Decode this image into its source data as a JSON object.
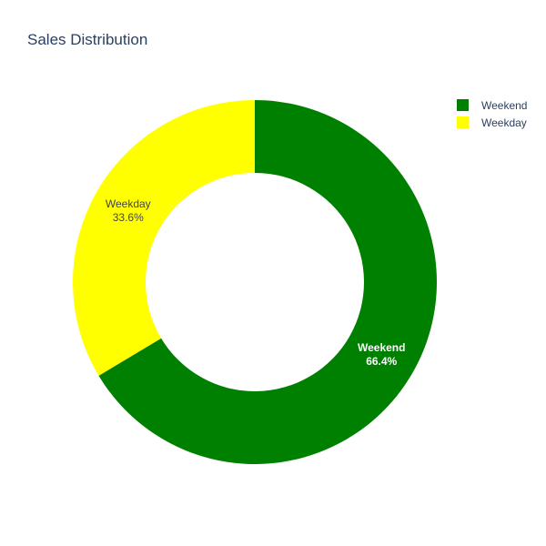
{
  "chart_data": {
    "type": "pie",
    "title": "Sales Distribution",
    "hole": 0.6,
    "slices": [
      {
        "label": "Weekend",
        "value": 66.4,
        "percent_text": "66.4%",
        "color": "#008000",
        "label_color": "#ffffff"
      },
      {
        "label": "Weekday",
        "value": 33.6,
        "percent_text": "33.6%",
        "color": "#ffff00",
        "label_color": "#444444"
      }
    ],
    "legend": {
      "position": "top-right",
      "entries": [
        {
          "label": "Weekend",
          "color": "#008000"
        },
        {
          "label": "Weekday",
          "color": "#ffff00"
        }
      ]
    }
  }
}
